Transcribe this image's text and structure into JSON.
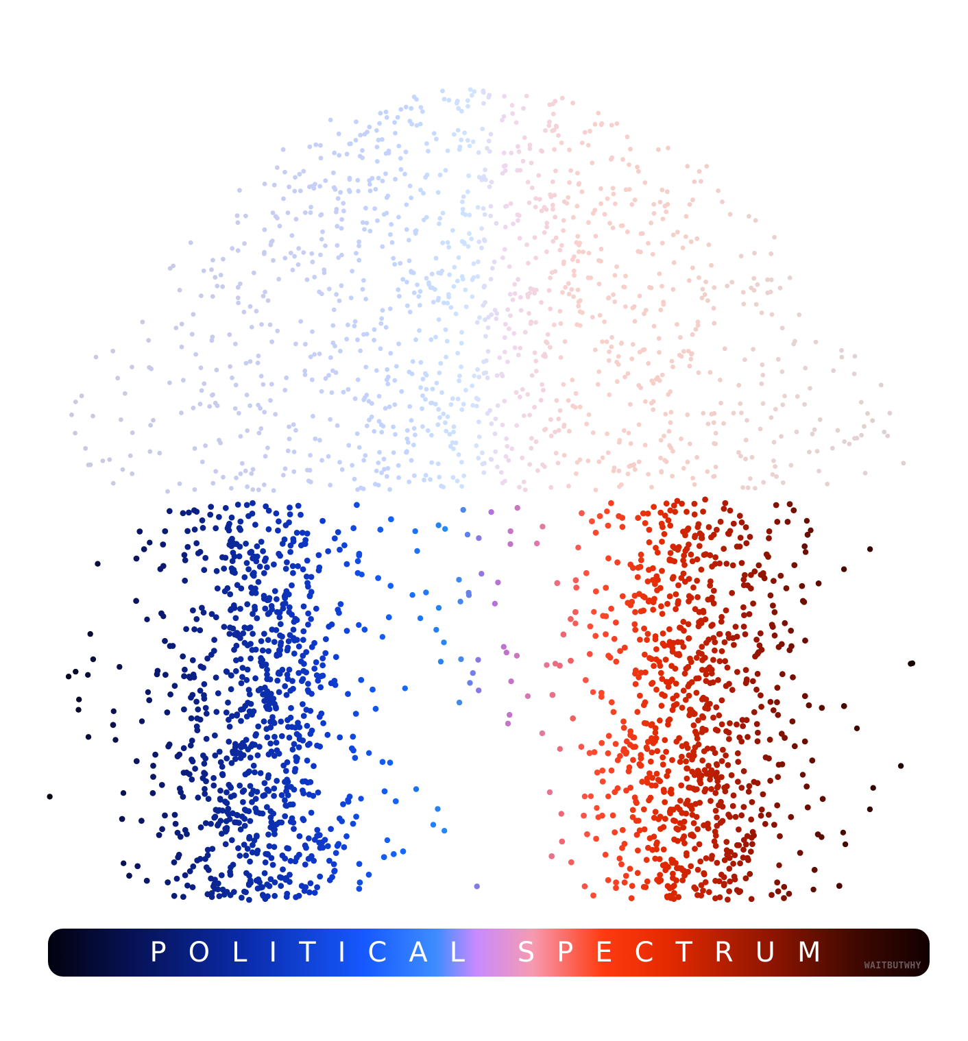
{
  "diagram": {
    "title": "POLITICAL SPECTRUM",
    "watermark": "WAITBUTWHY",
    "gradient_colors": [
      "#02020d",
      "#060f4a",
      "#0a2aa8",
      "#1659ff",
      "#3d8dff",
      "#c78aff",
      "#f79ab0",
      "#ff3a10",
      "#e62a00",
      "#8e1500",
      "#3d0800",
      "#120000"
    ]
  }
}
